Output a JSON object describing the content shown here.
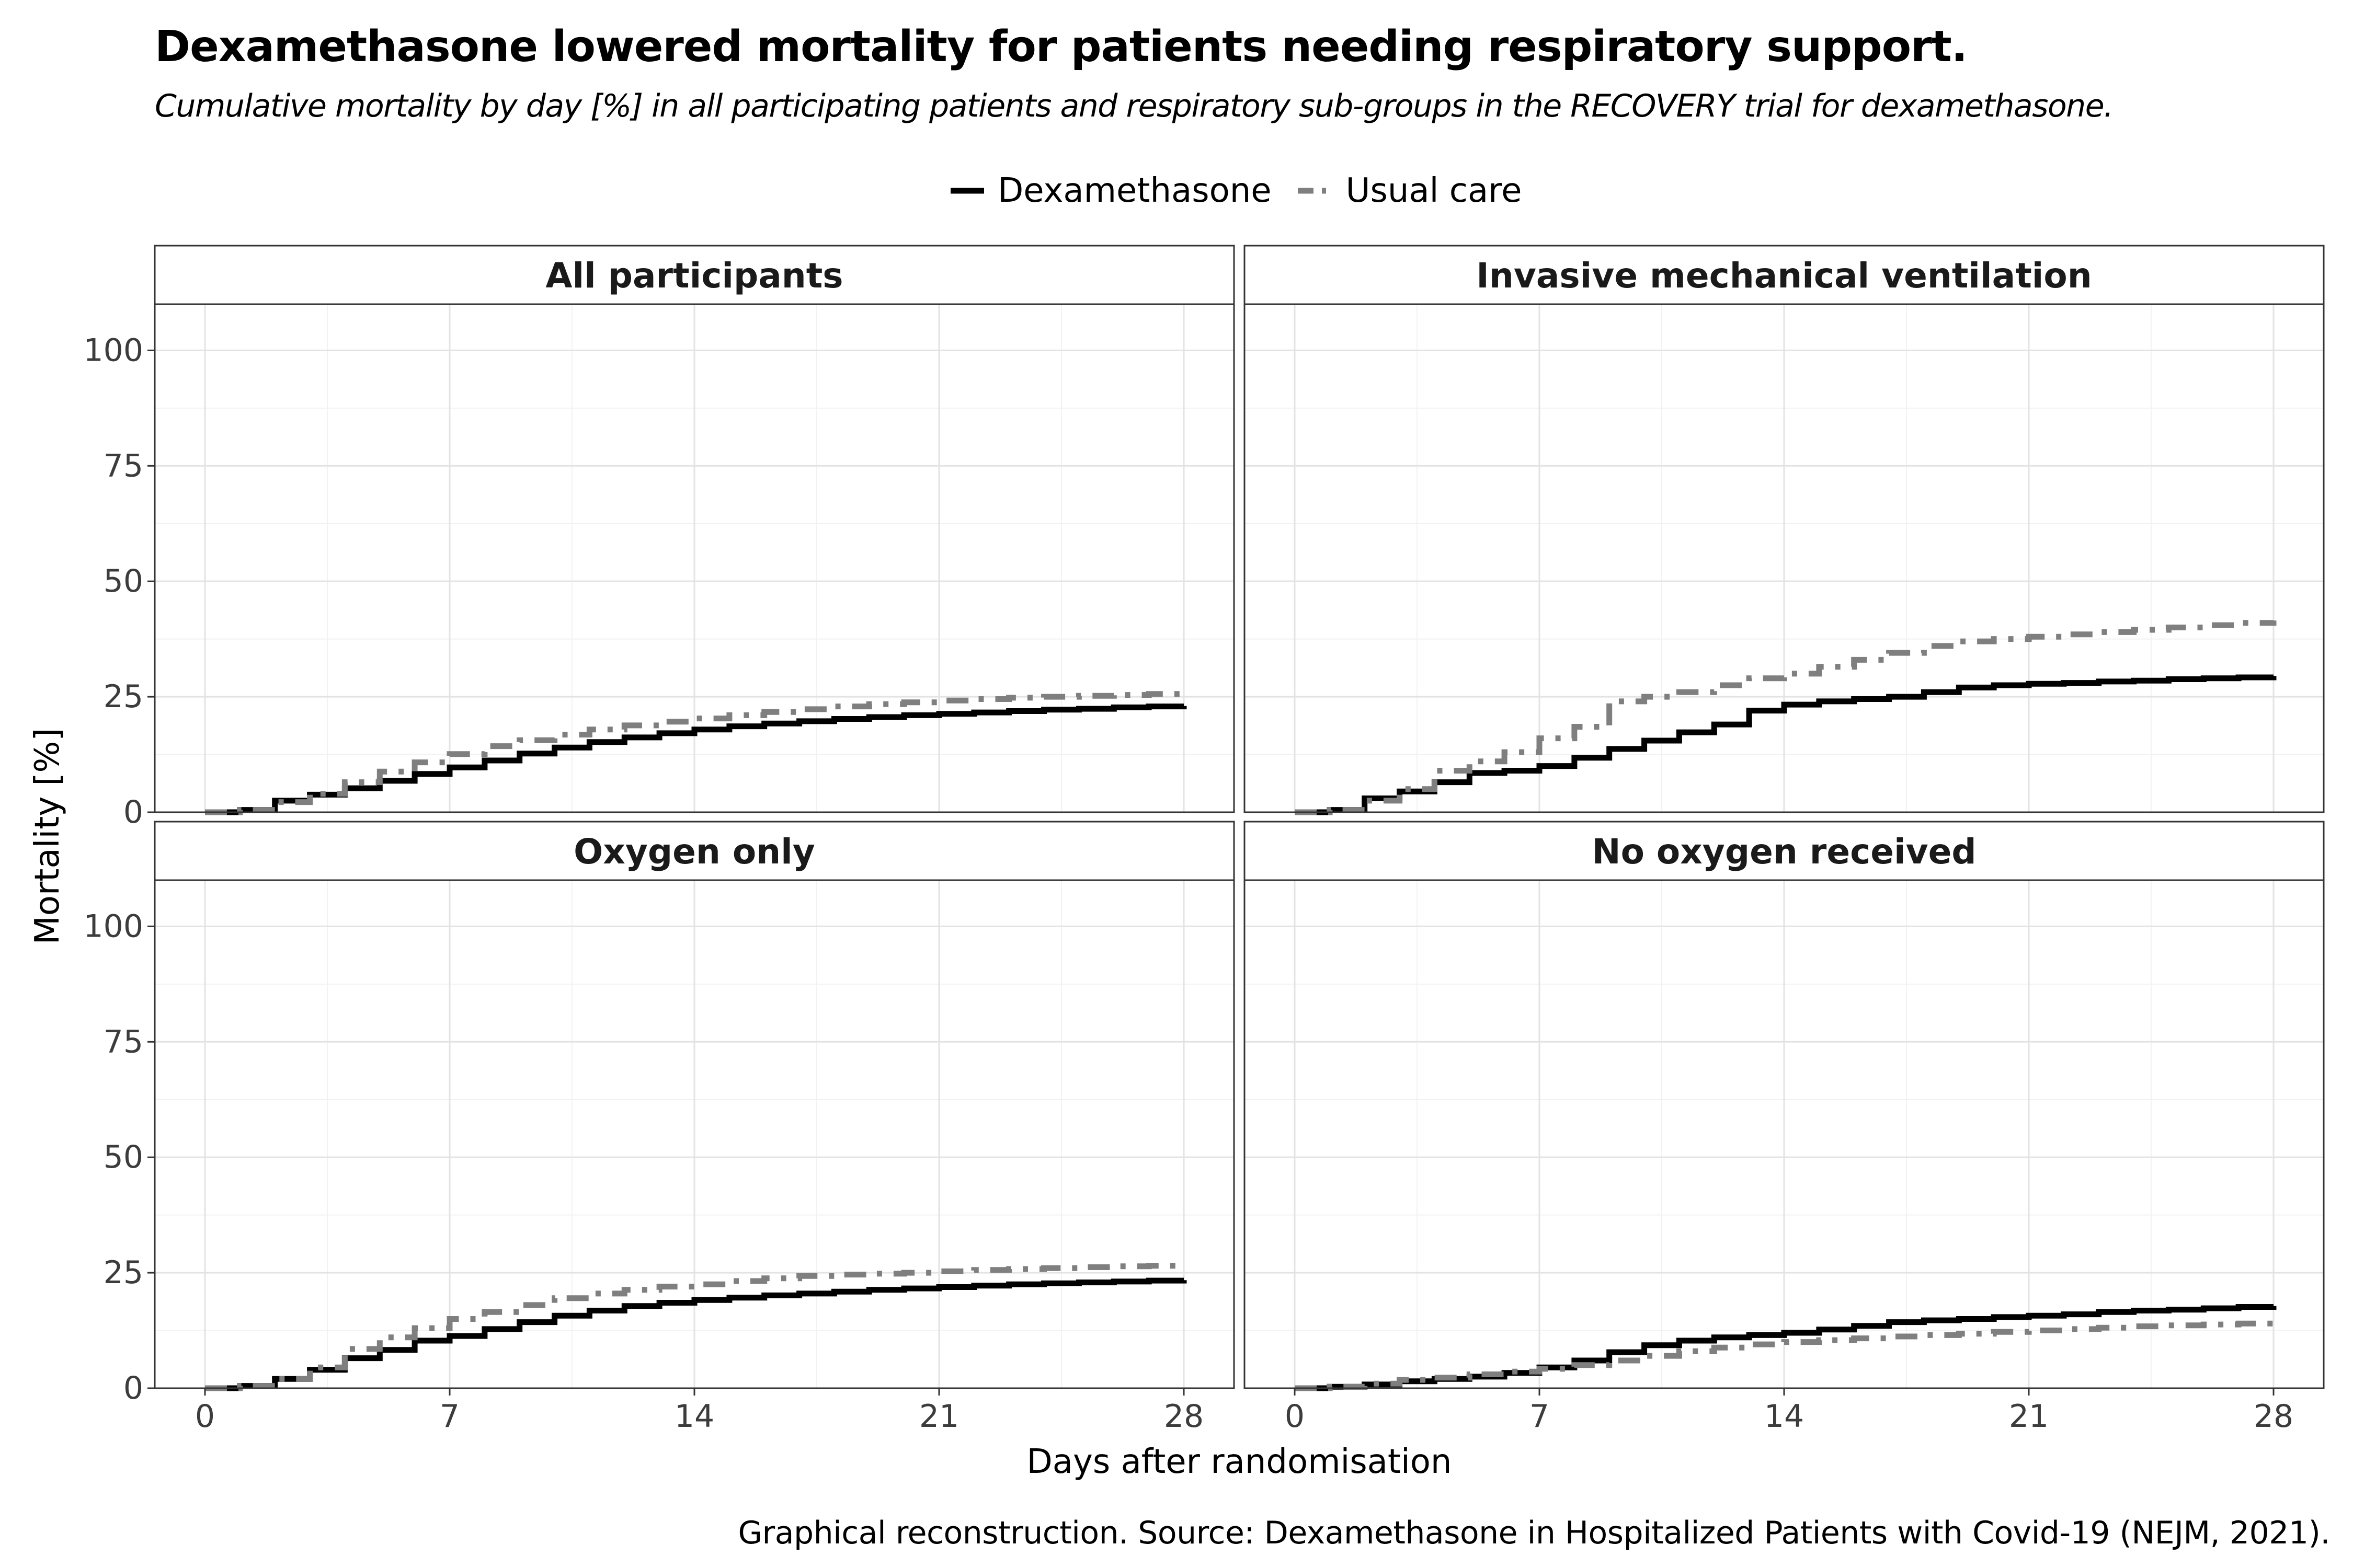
{
  "title": "Dexamethasone lowered mortality for patients needing respiratory support.",
  "subtitle": "Cumulative mortality by day [%] in all participating patients and respiratory sub-groups in the RECOVERY trial for dexamethasone.",
  "caption": "Graphical reconstruction. Source: Dexamethasone in Hospitalized Patients with Covid-19 (NEJM, 2021).",
  "legend": {
    "position": "top",
    "items": [
      {
        "label": "Dexamethasone",
        "color": "#000000",
        "style": "solid"
      },
      {
        "label": "Usual care",
        "color": "#7f7f7f",
        "style": "dash-dot"
      }
    ]
  },
  "chart_data": {
    "type": "line",
    "step": true,
    "xlabel": "Days after randomisation",
    "ylabel": "Mortality [%]",
    "xlim": [
      0,
      28
    ],
    "ylim": [
      0,
      110
    ],
    "xticks": [
      "0",
      "7",
      "14",
      "21",
      "28"
    ],
    "yticks": [
      "0",
      "25",
      "50",
      "75",
      "100"
    ],
    "grid": true,
    "colors": {
      "dexamethasone": "#000000",
      "usual_care": "#7f7f7f"
    },
    "panels": [
      {
        "title": "All participants",
        "series": [
          {
            "name": "Dexamethasone",
            "x": [
              0,
              1,
              2,
              3,
              4,
              5,
              6,
              7,
              8,
              9,
              10,
              11,
              12,
              13,
              14,
              15,
              16,
              17,
              18,
              19,
              20,
              21,
              22,
              23,
              24,
              25,
              26,
              27,
              28
            ],
            "y": [
              0,
              0.5,
              2.5,
              3.8,
              5.2,
              6.8,
              8.3,
              9.7,
              11.2,
              12.7,
              14.0,
              15.2,
              16.2,
              17.1,
              17.9,
              18.6,
              19.2,
              19.7,
              20.2,
              20.6,
              21.0,
              21.3,
              21.6,
              21.9,
              22.2,
              22.4,
              22.7,
              22.9,
              23.0
            ]
          },
          {
            "name": "Usual care",
            "x": [
              0,
              1,
              2,
              3,
              4,
              5,
              6,
              7,
              8,
              9,
              10,
              11,
              12,
              13,
              14,
              15,
              16,
              17,
              18,
              19,
              20,
              21,
              22,
              23,
              24,
              25,
              26,
              27,
              28
            ],
            "y": [
              0,
              0.5,
              2.2,
              4.0,
              6.5,
              8.8,
              10.8,
              12.6,
              14.3,
              15.6,
              16.8,
              17.9,
              18.8,
              19.6,
              20.3,
              21.0,
              21.7,
              22.3,
              22.9,
              23.4,
              23.8,
              24.2,
              24.5,
              24.8,
              25.0,
              25.2,
              25.4,
              25.6,
              25.7
            ]
          }
        ]
      },
      {
        "title": "Invasive mechanical ventilation",
        "series": [
          {
            "name": "Dexamethasone",
            "x": [
              0,
              1,
              2,
              3,
              4,
              5,
              6,
              7,
              8,
              9,
              10,
              11,
              12,
              13,
              14,
              15,
              16,
              17,
              18,
              19,
              20,
              21,
              22,
              23,
              24,
              25,
              26,
              27,
              28
            ],
            "y": [
              0,
              0.5,
              3.0,
              4.5,
              6.5,
              8.5,
              9.0,
              10.0,
              11.8,
              13.7,
              15.5,
              17.3,
              19.0,
              22.0,
              23.3,
              24.0,
              24.5,
              25.0,
              26.0,
              27.0,
              27.5,
              27.8,
              28.0,
              28.3,
              28.5,
              28.8,
              29.0,
              29.2,
              29.5
            ]
          },
          {
            "name": "Usual care",
            "x": [
              0,
              1,
              2,
              3,
              4,
              5,
              6,
              7,
              8,
              9,
              10,
              11,
              12,
              13,
              14,
              15,
              16,
              17,
              18,
              19,
              20,
              21,
              22,
              23,
              24,
              25,
              26,
              27,
              28
            ],
            "y": [
              0,
              0.5,
              2.5,
              5.0,
              9.0,
              11.0,
              13.0,
              16.0,
              18.5,
              24.0,
              25.0,
              26.0,
              27.5,
              29.0,
              30.0,
              31.5,
              33.0,
              34.5,
              36.0,
              37.0,
              37.5,
              38.0,
              38.5,
              39.0,
              39.5,
              40.0,
              40.5,
              41.0,
              41.5
            ]
          }
        ]
      },
      {
        "title": "Oxygen only",
        "series": [
          {
            "name": "Dexamethasone",
            "x": [
              0,
              1,
              2,
              3,
              4,
              5,
              6,
              7,
              8,
              9,
              10,
              11,
              12,
              13,
              14,
              15,
              16,
              17,
              18,
              19,
              20,
              21,
              22,
              23,
              24,
              25,
              26,
              27,
              28
            ],
            "y": [
              0,
              0.5,
              2.0,
              4.0,
              6.5,
              8.3,
              10.3,
              11.3,
              12.8,
              14.3,
              15.7,
              16.8,
              17.8,
              18.5,
              19.1,
              19.6,
              20.1,
              20.5,
              20.9,
              21.3,
              21.6,
              21.9,
              22.2,
              22.5,
              22.7,
              22.9,
              23.1,
              23.3,
              23.4
            ]
          },
          {
            "name": "Usual care",
            "x": [
              0,
              1,
              2,
              3,
              4,
              5,
              6,
              7,
              8,
              9,
              10,
              11,
              12,
              13,
              14,
              15,
              16,
              17,
              18,
              19,
              20,
              21,
              22,
              23,
              24,
              25,
              26,
              27,
              28
            ],
            "y": [
              0,
              0.5,
              2.0,
              4.5,
              8.5,
              11.0,
              13.0,
              15.0,
              16.5,
              18.0,
              19.5,
              20.5,
              21.3,
              22.0,
              22.5,
              23.2,
              23.8,
              24.3,
              24.6,
              24.8,
              25.0,
              25.3,
              25.6,
              25.8,
              26.0,
              26.2,
              26.4,
              26.5,
              26.6
            ]
          }
        ]
      },
      {
        "title": "No oxygen received",
        "series": [
          {
            "name": "Dexamethasone",
            "x": [
              0,
              1,
              2,
              3,
              4,
              5,
              6,
              7,
              8,
              9,
              10,
              11,
              12,
              13,
              14,
              15,
              16,
              17,
              18,
              19,
              20,
              21,
              22,
              23,
              24,
              25,
              26,
              27,
              28
            ],
            "y": [
              0,
              0.3,
              0.8,
              1.5,
              2.0,
              2.5,
              3.3,
              4.5,
              6.0,
              7.8,
              9.3,
              10.3,
              11.0,
              11.5,
              12.0,
              12.7,
              13.5,
              14.3,
              14.7,
              15.0,
              15.4,
              15.7,
              16.0,
              16.5,
              16.8,
              17.0,
              17.3,
              17.6,
              17.8
            ]
          },
          {
            "name": "Usual care",
            "x": [
              0,
              1,
              2,
              3,
              4,
              5,
              6,
              7,
              8,
              9,
              10,
              11,
              12,
              13,
              14,
              15,
              16,
              17,
              18,
              19,
              20,
              21,
              22,
              23,
              24,
              25,
              26,
              27,
              28
            ],
            "y": [
              0,
              0.3,
              1.0,
              1.8,
              2.3,
              3.0,
              3.6,
              4.2,
              5.0,
              6.0,
              7.0,
              8.0,
              8.8,
              9.5,
              10.0,
              10.4,
              10.8,
              11.2,
              11.5,
              11.8,
              12.2,
              12.5,
              12.8,
              13.1,
              13.4,
              13.6,
              13.8,
              14.0,
              14.1
            ]
          }
        ]
      }
    ]
  }
}
